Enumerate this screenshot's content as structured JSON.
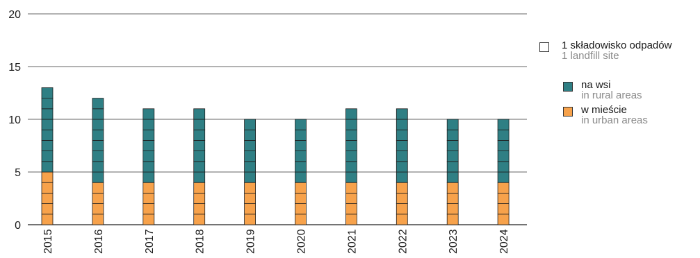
{
  "chart_data": {
    "type": "bar",
    "stacked": true,
    "unit_squares": true,
    "categories": [
      "2015",
      "2016",
      "2017",
      "2018",
      "2019",
      "2020",
      "2021",
      "2022",
      "2023",
      "2024"
    ],
    "series": [
      {
        "name": "w mieście",
        "name_en": "in urban areas",
        "color": "#f7a24b",
        "values": [
          5,
          4,
          4,
          4,
          4,
          4,
          4,
          4,
          4,
          4
        ]
      },
      {
        "name": "na wsi",
        "name_en": "in rural areas",
        "color": "#2f7f84",
        "values": [
          8,
          8,
          7,
          7,
          6,
          6,
          7,
          7,
          6,
          6
        ]
      }
    ],
    "ylim": [
      0,
      20
    ],
    "yticks": [
      0,
      5,
      10,
      15,
      20
    ],
    "grid": true,
    "legend_position": "right"
  },
  "legend": {
    "unit_label": "1 składowisko odpadów",
    "unit_label_en": "1 landfill site",
    "items": [
      {
        "label": "na wsi",
        "label_en": "in rural areas",
        "color": "#2f7f84"
      },
      {
        "label": "w mieście",
        "label_en": "in urban areas",
        "color": "#f7a24b"
      }
    ]
  }
}
